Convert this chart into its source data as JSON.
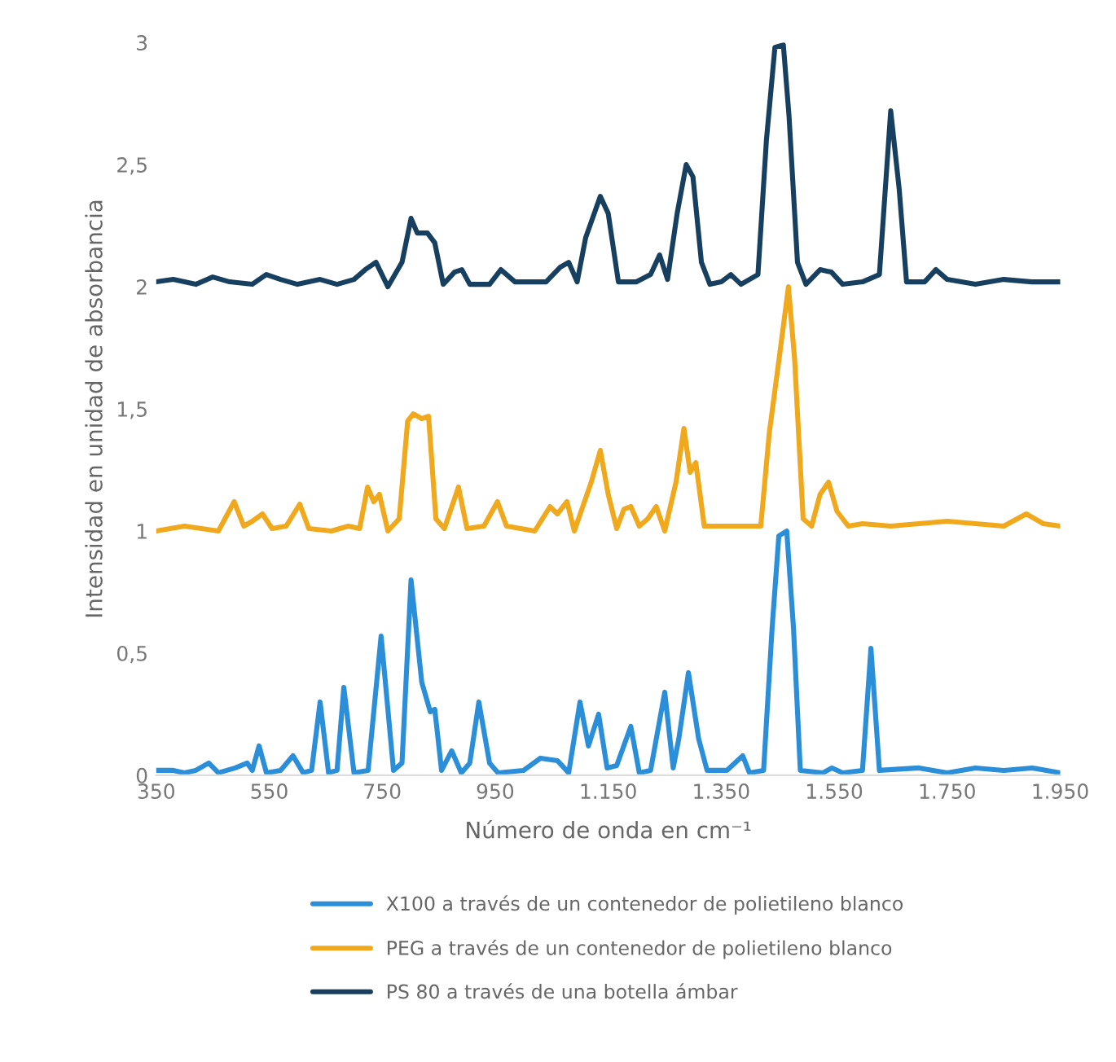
{
  "chart_data": {
    "type": "line",
    "xlabel": "Número de onda en cm⁻¹",
    "ylabel": "Intensidad en unidad de absorbancia",
    "xlim": [
      350,
      1950
    ],
    "xticks": [
      {
        "value": 350,
        "label": "350"
      },
      {
        "value": 550,
        "label": "550"
      },
      {
        "value": 750,
        "label": "750"
      },
      {
        "value": 950,
        "label": "950"
      },
      {
        "value": 1150,
        "label": "1.150"
      },
      {
        "value": 1350,
        "label": "1.350"
      },
      {
        "value": 1550,
        "label": "1.550"
      },
      {
        "value": 1750,
        "label": "1.750"
      },
      {
        "value": 1950,
        "label": "1.950"
      }
    ],
    "ylim": [
      0,
      3
    ],
    "yticks": [
      {
        "value": 0,
        "label": "0"
      },
      {
        "value": 0.5,
        "label": "0,5"
      },
      {
        "value": 1,
        "label": "1"
      },
      {
        "value": 1.5,
        "label": "1,5"
      },
      {
        "value": 2,
        "label": "2"
      },
      {
        "value": 2.5,
        "label": "2,5"
      },
      {
        "value": 3,
        "label": "3"
      }
    ],
    "grid": false,
    "legend": "bottom",
    "series": [
      {
        "name": "X100 a través de un contenedor de polietileno blanco",
        "color": "#2b8ed8",
        "x": [
          350,
          380,
          400,
          420,
          443,
          460,
          490,
          511,
          520,
          532,
          545,
          570,
          592,
          610,
          625,
          640,
          655,
          670,
          682,
          700,
          725,
          748,
          770,
          785,
          801,
          820,
          835,
          843,
          855,
          873,
          890,
          905,
          921,
          940,
          955,
          1000,
          1030,
          1060,
          1080,
          1100,
          1115,
          1133,
          1148,
          1165,
          1190,
          1205,
          1225,
          1250,
          1265,
          1275,
          1292,
          1310,
          1325,
          1360,
          1388,
          1400,
          1425,
          1440,
          1452,
          1466,
          1478,
          1490,
          1530,
          1546,
          1565,
          1600,
          1615,
          1630,
          1700,
          1750,
          1800,
          1850,
          1900,
          1950
        ],
        "values": [
          0.02,
          0.02,
          0.01,
          0.02,
          0.05,
          0.01,
          0.03,
          0.05,
          0.02,
          0.12,
          0.01,
          0.02,
          0.08,
          0.01,
          0.02,
          0.3,
          0.01,
          0.02,
          0.36,
          0.01,
          0.02,
          0.57,
          0.02,
          0.05,
          0.8,
          0.38,
          0.26,
          0.27,
          0.02,
          0.1,
          0.01,
          0.05,
          0.3,
          0.05,
          0.01,
          0.02,
          0.07,
          0.06,
          0.01,
          0.3,
          0.12,
          0.25,
          0.03,
          0.04,
          0.2,
          0.01,
          0.02,
          0.34,
          0.03,
          0.15,
          0.42,
          0.15,
          0.02,
          0.02,
          0.08,
          0.01,
          0.02,
          0.6,
          0.98,
          1.0,
          0.6,
          0.02,
          0.01,
          0.03,
          0.01,
          0.02,
          0.52,
          0.02,
          0.03,
          0.01,
          0.03,
          0.02,
          0.03,
          0.01
        ]
      },
      {
        "name": "PEG a través de un contenedor de polietileno blanco",
        "color": "#f0a81c",
        "x": [
          350,
          400,
          430,
          460,
          488,
          505,
          520,
          538,
          555,
          580,
          604,
          620,
          660,
          690,
          710,
          724,
          735,
          745,
          760,
          780,
          795,
          805,
          820,
          832,
          845,
          860,
          885,
          900,
          930,
          954,
          970,
          1020,
          1047,
          1060,
          1077,
          1090,
          1120,
          1136,
          1150,
          1165,
          1178,
          1190,
          1205,
          1220,
          1235,
          1250,
          1270,
          1284,
          1295,
          1305,
          1320,
          1380,
          1420,
          1435,
          1455,
          1469,
          1480,
          1495,
          1510,
          1525,
          1540,
          1555,
          1575,
          1600,
          1650,
          1700,
          1750,
          1800,
          1850,
          1890,
          1920,
          1950
        ],
        "values": [
          1.0,
          1.02,
          1.01,
          1.0,
          1.12,
          1.02,
          1.04,
          1.07,
          1.01,
          1.02,
          1.11,
          1.01,
          1.0,
          1.02,
          1.01,
          1.18,
          1.12,
          1.15,
          1.0,
          1.05,
          1.45,
          1.48,
          1.46,
          1.47,
          1.05,
          1.01,
          1.18,
          1.01,
          1.02,
          1.12,
          1.02,
          1.0,
          1.1,
          1.07,
          1.12,
          1.0,
          1.2,
          1.33,
          1.15,
          1.01,
          1.09,
          1.1,
          1.02,
          1.05,
          1.1,
          1.0,
          1.2,
          1.42,
          1.24,
          1.28,
          1.02,
          1.02,
          1.02,
          1.4,
          1.75,
          2.0,
          1.7,
          1.05,
          1.02,
          1.15,
          1.2,
          1.08,
          1.02,
          1.03,
          1.02,
          1.03,
          1.04,
          1.03,
          1.02,
          1.07,
          1.03,
          1.02
        ]
      },
      {
        "name": "PS 80 a través de una botella ámbar",
        "color": "#173f5f",
        "x": [
          350,
          380,
          420,
          450,
          480,
          520,
          545,
          570,
          600,
          640,
          670,
          700,
          720,
          739,
          760,
          785,
          801,
          812,
          830,
          843,
          858,
          878,
          891,
          905,
          940,
          960,
          985,
          1040,
          1065,
          1080,
          1095,
          1110,
          1136,
          1150,
          1168,
          1200,
          1225,
          1241,
          1255,
          1272,
          1288,
          1300,
          1315,
          1330,
          1350,
          1367,
          1385,
          1415,
          1430,
          1445,
          1460,
          1470,
          1485,
          1500,
          1525,
          1545,
          1565,
          1600,
          1630,
          1650,
          1665,
          1678,
          1710,
          1730,
          1750,
          1800,
          1850,
          1900,
          1950
        ],
        "values": [
          2.02,
          2.03,
          2.01,
          2.04,
          2.02,
          2.01,
          2.05,
          2.03,
          2.01,
          2.03,
          2.01,
          2.03,
          2.07,
          2.1,
          2.0,
          2.1,
          2.28,
          2.22,
          2.22,
          2.18,
          2.01,
          2.06,
          2.07,
          2.01,
          2.01,
          2.07,
          2.02,
          2.02,
          2.08,
          2.1,
          2.02,
          2.2,
          2.37,
          2.3,
          2.02,
          2.02,
          2.05,
          2.13,
          2.03,
          2.3,
          2.5,
          2.45,
          2.1,
          2.01,
          2.02,
          2.05,
          2.01,
          2.05,
          2.6,
          2.98,
          2.99,
          2.7,
          2.1,
          2.01,
          2.07,
          2.06,
          2.01,
          2.02,
          2.05,
          2.72,
          2.4,
          2.02,
          2.02,
          2.07,
          2.03,
          2.01,
          2.03,
          2.02,
          2.02
        ]
      }
    ]
  }
}
